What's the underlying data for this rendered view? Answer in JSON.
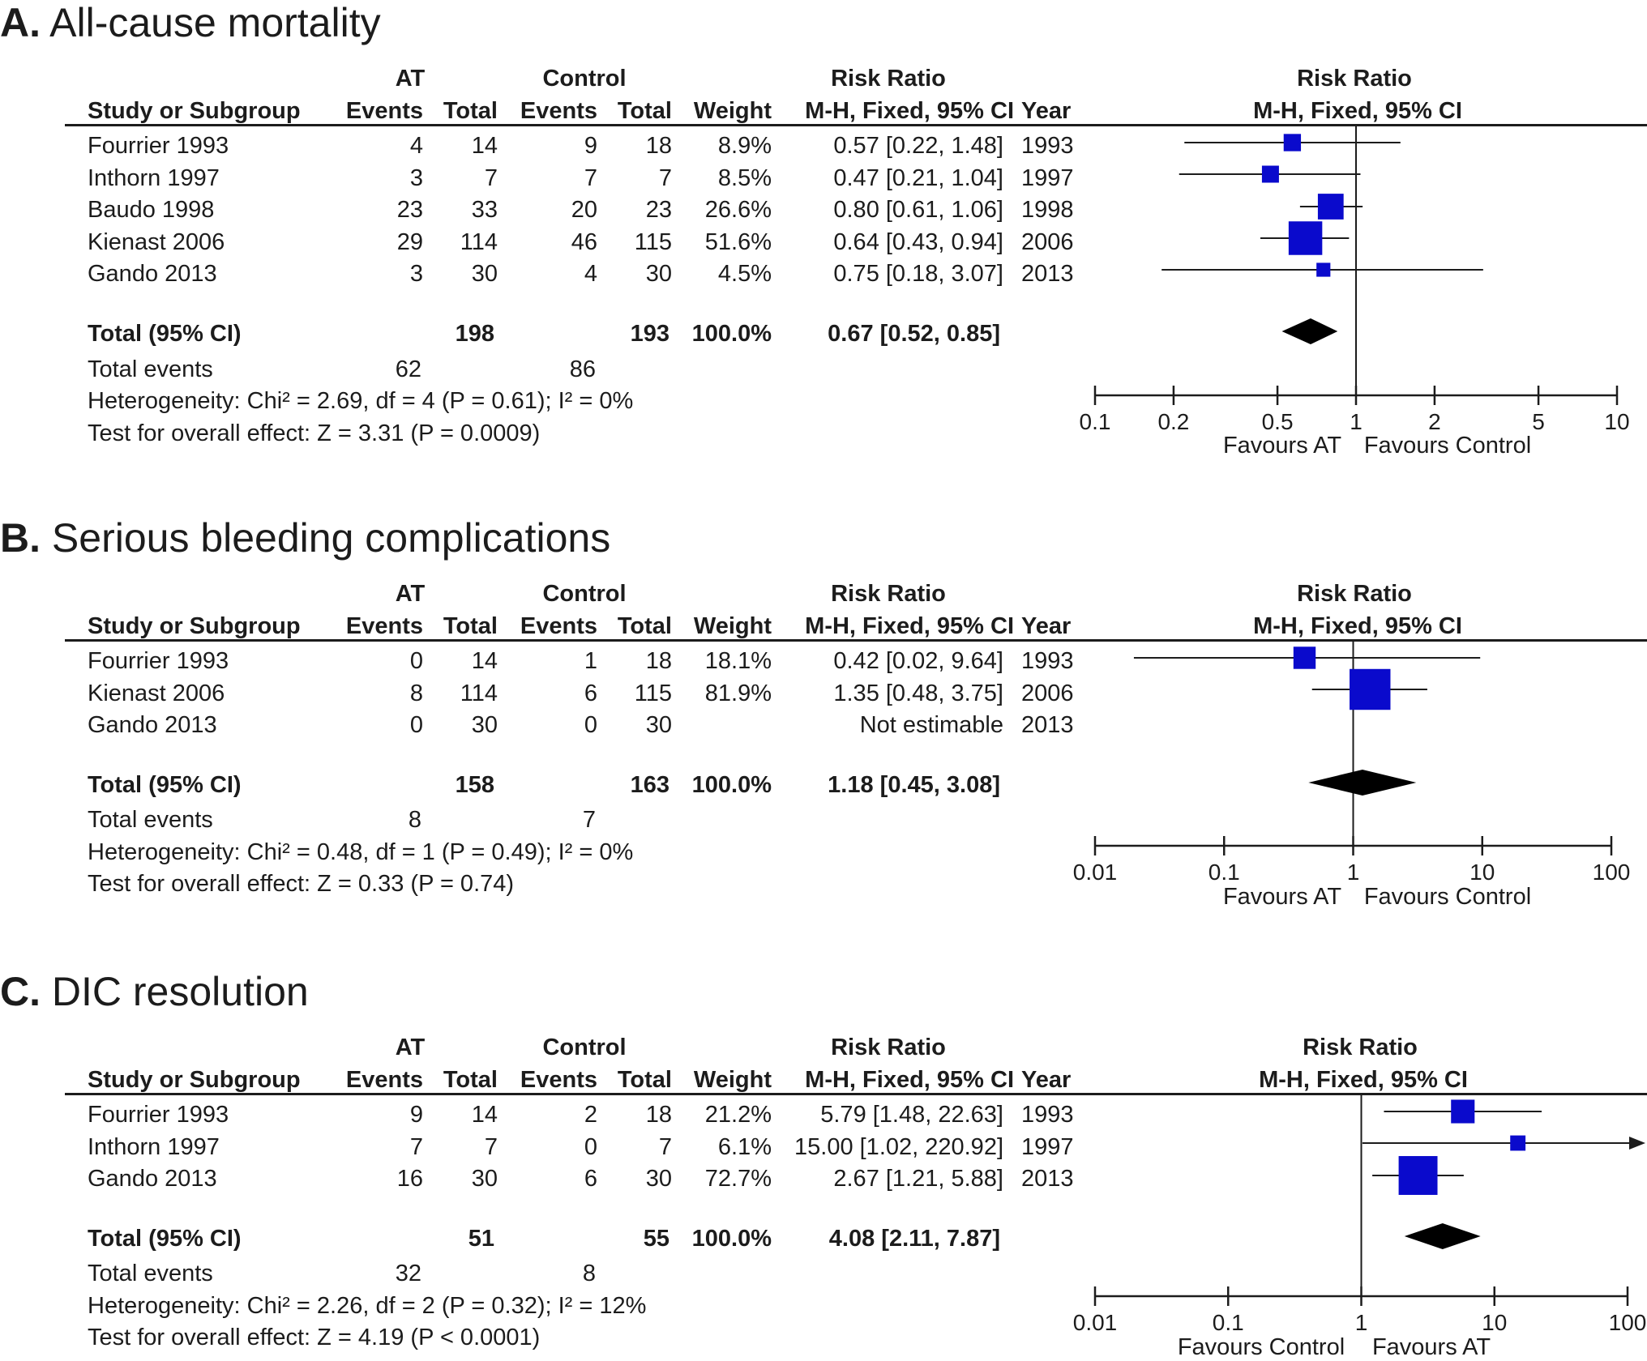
{
  "labels": {
    "risk_ratio": "Risk Ratio",
    "method": "M-H, Fixed, 95% CI",
    "study": "Study or Subgroup",
    "events": "Events",
    "total": "Total",
    "weight": "Weight",
    "year": "Year",
    "total_row": "Total (95% CI)",
    "total_events": "Total events"
  },
  "panels": [
    {
      "letter": "A.",
      "title": "All-cause mortality",
      "group_at": "AT",
      "group_control": "Control",
      "studies": [
        {
          "name": "Fourrier 1993",
          "at_events": "4",
          "at_total": "14",
          "ctl_events": "9",
          "ctl_total": "18",
          "weight": "8.9%",
          "rr": "0.57 [0.22, 1.48]",
          "year": "1993"
        },
        {
          "name": "Inthorn 1997",
          "at_events": "3",
          "at_total": "7",
          "ctl_events": "7",
          "ctl_total": "7",
          "weight": "8.5%",
          "rr": "0.47 [0.21, 1.04]",
          "year": "1997"
        },
        {
          "name": "Baudo 1998",
          "at_events": "23",
          "at_total": "33",
          "ctl_events": "20",
          "ctl_total": "23",
          "weight": "26.6%",
          "rr": "0.80 [0.61, 1.06]",
          "year": "1998"
        },
        {
          "name": "Kienast 2006",
          "at_events": "29",
          "at_total": "114",
          "ctl_events": "46",
          "ctl_total": "115",
          "weight": "51.6%",
          "rr": "0.64 [0.43, 0.94]",
          "year": "2006"
        },
        {
          "name": "Gando 2013",
          "at_events": "3",
          "at_total": "30",
          "ctl_events": "4",
          "ctl_total": "30",
          "weight": "4.5%",
          "rr": "0.75 [0.18, 3.07]",
          "year": "2013"
        }
      ],
      "total": {
        "at_total": "198",
        "ctl_total": "193",
        "weight": "100.0%",
        "rr": "0.67 [0.52, 0.85]"
      },
      "events": {
        "at": "62",
        "ctl": "86"
      },
      "heterogeneity": "Heterogeneity: Chi² = 2.69, df = 4 (P = 0.61); I² = 0%",
      "overall": "Test for overall effect: Z = 3.31 (P = 0.0009)",
      "favours_left": "Favours AT",
      "favours_right": "Favours Control"
    },
    {
      "letter": "B.",
      "title": "Serious bleeding complications",
      "group_at": "AT",
      "group_control": "Control",
      "studies": [
        {
          "name": "Fourrier 1993",
          "at_events": "0",
          "at_total": "14",
          "ctl_events": "1",
          "ctl_total": "18",
          "weight": "18.1%",
          "rr": "0.42 [0.02, 9.64]",
          "year": "1993"
        },
        {
          "name": "Kienast 2006",
          "at_events": "8",
          "at_total": "114",
          "ctl_events": "6",
          "ctl_total": "115",
          "weight": "81.9%",
          "rr": "1.35 [0.48, 3.75]",
          "year": "2006"
        },
        {
          "name": "Gando 2013",
          "at_events": "0",
          "at_total": "30",
          "ctl_events": "0",
          "ctl_total": "30",
          "weight": "",
          "rr": "Not estimable",
          "year": "2013"
        }
      ],
      "total": {
        "at_total": "158",
        "ctl_total": "163",
        "weight": "100.0%",
        "rr": "1.18 [0.45, 3.08]"
      },
      "events": {
        "at": "8",
        "ctl": "7"
      },
      "heterogeneity": "Heterogeneity: Chi² = 0.48, df = 1 (P = 0.49); I² = 0%",
      "overall": "Test for overall effect: Z = 0.33 (P = 0.74)",
      "favours_left": "Favours AT",
      "favours_right": "Favours Control"
    },
    {
      "letter": "C.",
      "title": "DIC resolution",
      "group_at": "AT",
      "group_control": "Control",
      "studies": [
        {
          "name": "Fourrier 1993",
          "at_events": "9",
          "at_total": "14",
          "ctl_events": "2",
          "ctl_total": "18",
          "weight": "21.2%",
          "rr": "5.79 [1.48, 22.63]",
          "year": "1993"
        },
        {
          "name": "Inthorn 1997",
          "at_events": "7",
          "at_total": "7",
          "ctl_events": "0",
          "ctl_total": "7",
          "weight": "6.1%",
          "rr": "15.00 [1.02, 220.92]",
          "year": "1997"
        },
        {
          "name": "Gando 2013",
          "at_events": "16",
          "at_total": "30",
          "ctl_events": "6",
          "ctl_total": "30",
          "weight": "72.7%",
          "rr": "2.67 [1.21, 5.88]",
          "year": "2013"
        }
      ],
      "total": {
        "at_total": "51",
        "ctl_total": "55",
        "weight": "100.0%",
        "rr": "4.08 [2.11, 7.87]"
      },
      "events": {
        "at": "32",
        "ctl": "8"
      },
      "heterogeneity": "Heterogeneity: Chi² = 2.26, df = 2 (P = 0.32); I² = 12%",
      "overall": "Test for overall effect: Z = 4.19 (P < 0.0001)",
      "favours_left": "Favours Control",
      "favours_right": "Favours AT"
    }
  ],
  "chart_data": [
    {
      "type": "forest",
      "title": "All-cause mortality",
      "scale": "log",
      "xlim": [
        0.1,
        10
      ],
      "ticks": [
        "0.1",
        "0.2",
        "0.5",
        "1",
        "2",
        "5",
        "10"
      ],
      "studies": [
        {
          "name": "Fourrier 1993",
          "rr": 0.57,
          "lo": 0.22,
          "hi": 1.48,
          "weight": 8.9
        },
        {
          "name": "Inthorn 1997",
          "rr": 0.47,
          "lo": 0.21,
          "hi": 1.04,
          "weight": 8.5
        },
        {
          "name": "Baudo 1998",
          "rr": 0.8,
          "lo": 0.61,
          "hi": 1.06,
          "weight": 26.6
        },
        {
          "name": "Kienast 2006",
          "rr": 0.64,
          "lo": 0.43,
          "hi": 0.94,
          "weight": 51.6
        },
        {
          "name": "Gando 2013",
          "rr": 0.75,
          "lo": 0.18,
          "hi": 3.07,
          "weight": 4.5
        }
      ],
      "pooled": {
        "rr": 0.67,
        "lo": 0.52,
        "hi": 0.85
      },
      "marker_color": "#0a0acc"
    },
    {
      "type": "forest",
      "title": "Serious bleeding complications",
      "scale": "log",
      "xlim": [
        0.01,
        100
      ],
      "ticks": [
        "0.01",
        "0.1",
        "1",
        "10",
        "100"
      ],
      "studies": [
        {
          "name": "Fourrier 1993",
          "rr": 0.42,
          "lo": 0.02,
          "hi": 9.64,
          "weight": 18.1
        },
        {
          "name": "Kienast 2006",
          "rr": 1.35,
          "lo": 0.48,
          "hi": 3.75,
          "weight": 81.9
        },
        {
          "name": "Gando 2013",
          "rr": null,
          "lo": null,
          "hi": null,
          "weight": null
        }
      ],
      "pooled": {
        "rr": 1.18,
        "lo": 0.45,
        "hi": 3.08
      },
      "marker_color": "#0a0acc"
    },
    {
      "type": "forest",
      "title": "DIC resolution",
      "scale": "log",
      "xlim": [
        0.01,
        100
      ],
      "ticks": [
        "0.01",
        "0.1",
        "1",
        "10",
        "100"
      ],
      "studies": [
        {
          "name": "Fourrier 1993",
          "rr": 5.79,
          "lo": 1.48,
          "hi": 22.63,
          "weight": 21.2
        },
        {
          "name": "Inthorn 1997",
          "rr": 15.0,
          "lo": 1.02,
          "hi": 220.92,
          "weight": 6.1
        },
        {
          "name": "Gando 2013",
          "rr": 2.67,
          "lo": 1.21,
          "hi": 5.88,
          "weight": 72.7
        }
      ],
      "pooled": {
        "rr": 4.08,
        "lo": 2.11,
        "hi": 7.87
      },
      "marker_color": "#0a0acc"
    }
  ]
}
